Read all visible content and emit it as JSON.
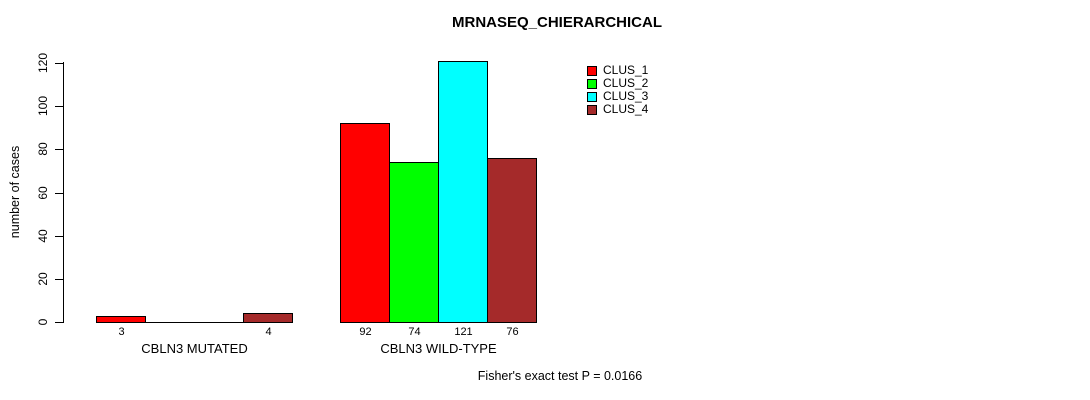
{
  "title": "MRNASEQ_CHIERARCHICAL",
  "annotation": "Fisher's exact test P = 0.0166",
  "chart_data": {
    "type": "bar",
    "title": "MRNASEQ_CHIERARCHICAL",
    "xlabel": "",
    "ylabel": "number of cases",
    "ylim": [
      0,
      120
    ],
    "yticks": [
      0,
      20,
      40,
      60,
      80,
      100,
      120
    ],
    "grid": false,
    "legend_position": "top-right",
    "categories": [
      "CBLN3 MUTATED",
      "CBLN3 WILD-TYPE"
    ],
    "series": [
      {
        "name": "CLUS_1",
        "color": "#ff0000",
        "values": [
          3,
          92
        ]
      },
      {
        "name": "CLUS_2",
        "color": "#00ff00",
        "values": [
          0,
          74
        ]
      },
      {
        "name": "CLUS_3",
        "color": "#00ffff",
        "values": [
          0,
          121
        ]
      },
      {
        "name": "CLUS_4",
        "color": "#a52a2a",
        "values": [
          4,
          76
        ]
      }
    ],
    "groups": [
      {
        "label": "CBLN3 MUTATED",
        "values": [
          3,
          0,
          0,
          4
        ],
        "bar_labels": [
          "3",
          "",
          "",
          "4"
        ]
      },
      {
        "label": "CBLN3 WILD-TYPE",
        "values": [
          92,
          74,
          121,
          76
        ],
        "bar_labels": [
          "92",
          "74",
          "121",
          "76"
        ]
      }
    ],
    "annotation": "Fisher's exact test P = 0.0166"
  }
}
